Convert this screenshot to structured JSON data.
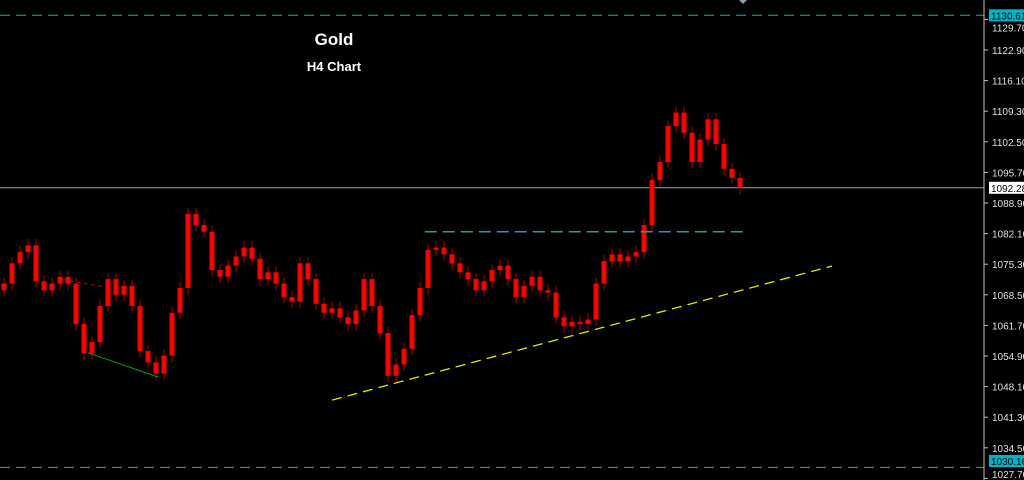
{
  "chart_data": {
    "type": "candlestick",
    "title": "Gold",
    "subtitle": "H4 Chart",
    "ylim": [
      1027.0,
      1134.0
    ],
    "y_ticks": [
      "1129.70",
      "1122.90",
      "1116.10",
      "1109.30",
      "1102.50",
      "1095.70",
      "1088.90",
      "1082.10",
      "1075.30",
      "1068.50",
      "1061.70",
      "1054.90",
      "1048.10",
      "1041.30",
      "1034.50",
      "1027.70"
    ],
    "grid": false,
    "candle_color": "#ff0000",
    "first_open": 1069.5,
    "closes": [
      1071.0,
      1075.5,
      1078.0,
      1079.5,
      1071.5,
      1069.5,
      1071.0,
      1072.5,
      1071.0,
      1062.0,
      1055.5,
      1058.0,
      1066.0,
      1072.0,
      1068.5,
      1070.5,
      1066.0,
      1056.0,
      1053.5,
      1051.0,
      1055.0,
      1064.5,
      1070.0,
      1086.5,
      1084.0,
      1082.5,
      1074.0,
      1072.5,
      1075.0,
      1077.0,
      1079.0,
      1076.5,
      1072.0,
      1073.5,
      1071.0,
      1068.0,
      1067.0,
      1075.5,
      1072.0,
      1066.5,
      1064.5,
      1065.5,
      1063.5,
      1062.0,
      1065.0,
      1072.0,
      1066.0,
      1060.0,
      1050.5,
      1053.0,
      1056.5,
      1064.0,
      1070.0,
      1078.5,
      1079.0,
      1077.5,
      1075.5,
      1073.5,
      1072.0,
      1069.5,
      1071.5,
      1074.0,
      1075.0,
      1072.0,
      1068.0,
      1070.5,
      1072.5,
      1069.5,
      1069.0,
      1063.5,
      1061.5,
      1062.5,
      1062.0,
      1063.0,
      1071.0,
      1076.0,
      1077.5,
      1076.0,
      1077.0,
      1078.0,
      1084.0,
      1094.0,
      1098.0,
      1106.0,
      1109.0,
      1104.5,
      1098.0,
      1103.0,
      1107.5,
      1102.0,
      1096.5,
      1094.5,
      1092.3
    ],
    "price_levels": [
      {
        "label": "1130.61",
        "value": 1130.61,
        "color": "#00b4c8",
        "style": "dashed"
      },
      {
        "label": "1092.28",
        "value": 1092.28,
        "color": "#8aa0b4",
        "style": "solid"
      },
      {
        "label": "1030.16",
        "value": 1030.16,
        "color": "#00b4c8",
        "style": "dashed"
      }
    ],
    "resistance_line": {
      "from_bar": 52.6,
      "to_bar": 93,
      "value": 1082.5,
      "color": "#1aa0a8"
    },
    "trendline": {
      "from_bar": 41,
      "from_value": 1045.1,
      "to_bar": 103.5,
      "to_value": 1074.9,
      "color": "#e6e600"
    },
    "red_dashed_line": {
      "from_bar": 7.4,
      "from_value": 1071.9,
      "to_bar": 12.4,
      "to_value": 1070.3,
      "color": "#c00000"
    },
    "green_line": {
      "from_bar": 10.5,
      "from_value": 1055.6,
      "to_bar": 19.3,
      "to_value": 1050.2,
      "color": "#00a000"
    }
  }
}
